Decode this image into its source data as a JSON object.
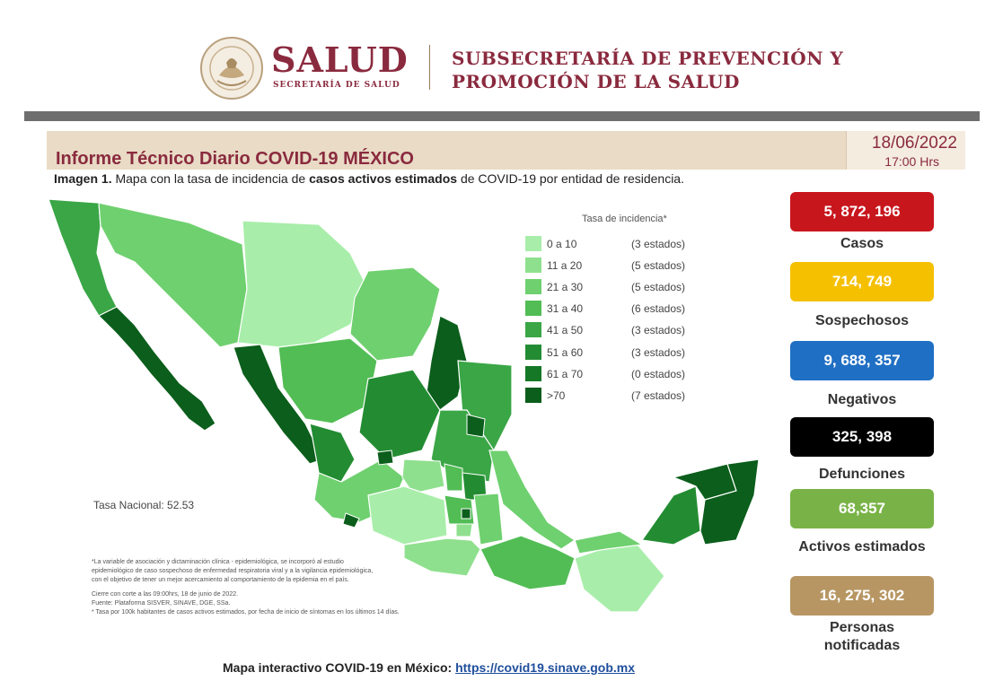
{
  "header": {
    "brand": "SALUD",
    "brand_sub": "SECRETARÍA DE SALUD",
    "subsecretaria_line1": "SUBSECRETARÍA DE PREVENCIÓN Y",
    "subsecretaria_line2": "PROMOCIÓN DE LA SALUD",
    "brand_color": "#8a2a3e"
  },
  "report": {
    "title": "Informe Técnico Diario COVID-19 MÉXICO",
    "date": "18/06/2022",
    "time": "17:00 Hrs",
    "caption_prefix": "Imagen 1.",
    "caption_part1": " Mapa con la tasa de incidencia de ",
    "caption_bold": "casos activos estimados",
    "caption_part2": " de COVID-19 por entidad de residencia."
  },
  "map": {
    "legend_title": "Tasa de incidencia*",
    "legend": [
      {
        "range": "0 a  10",
        "count": "(3 estados)",
        "color": "#a8eeaa"
      },
      {
        "range": "11 a  20",
        "count": "(5 estados)",
        "color": "#8fe08e"
      },
      {
        "range": "21 a  30",
        "count": "(5 estados)",
        "color": "#6fd06f"
      },
      {
        "range": "31 a  40",
        "count": "(6 estados)",
        "color": "#52bd55"
      },
      {
        "range": "41 a  50",
        "count": "(3 estados)",
        "color": "#3aa646"
      },
      {
        "range": "51 a  60",
        "count": "(3 estados)",
        "color": "#238c32"
      },
      {
        "range": "61 a  70",
        "count": "(0 estados)",
        "color": "#157826"
      },
      {
        "range": ">70",
        "count": "(7 estados)",
        "color": "#0b5e1b"
      }
    ],
    "national_rate": "Tasa Nacional: 52.53",
    "footnotes": [
      "*La variable de asociación y dictaminación clínica - epidemiológica, se incorporó al estudio",
      "epidemiológico de caso sospechoso de enfermedad respiratoria viral y a la vigilancia epidemiológica,",
      "con el objetivo de tener un mejor acercamiento al comportamiento de la epidemia en el país.",
      "Cierre con corte a las 09:00hrs, 18 de junio de 2022.",
      "Fuente: Plataforma SISVER, SINAVE, DGE, SSa.",
      "* Tasa por 100k habitantes de casos activos estimados, por fecha de inicio de síntomas en los últimos 14 días."
    ]
  },
  "stats": [
    {
      "value": "5, 872, 196",
      "label": "Casos",
      "color": "#c8161d"
    },
    {
      "value": "714, 749",
      "label": "Sospechosos",
      "color": "#f5c000"
    },
    {
      "value": "9, 688, 357",
      "label": "Negativos",
      "color": "#1f6fc4"
    },
    {
      "value": "325, 398",
      "label": "Defunciones",
      "color": "#000000"
    },
    {
      "value": "68,357",
      "label": "Activos estimados",
      "color": "#79b347"
    },
    {
      "value": "16, 275, 302",
      "label": "Personas notificadas",
      "color": "#b79663"
    }
  ],
  "footer": {
    "link_label": "Mapa interactivo COVID-19 en México:",
    "link_url": "https://covid19.sinave.gob.mx"
  }
}
